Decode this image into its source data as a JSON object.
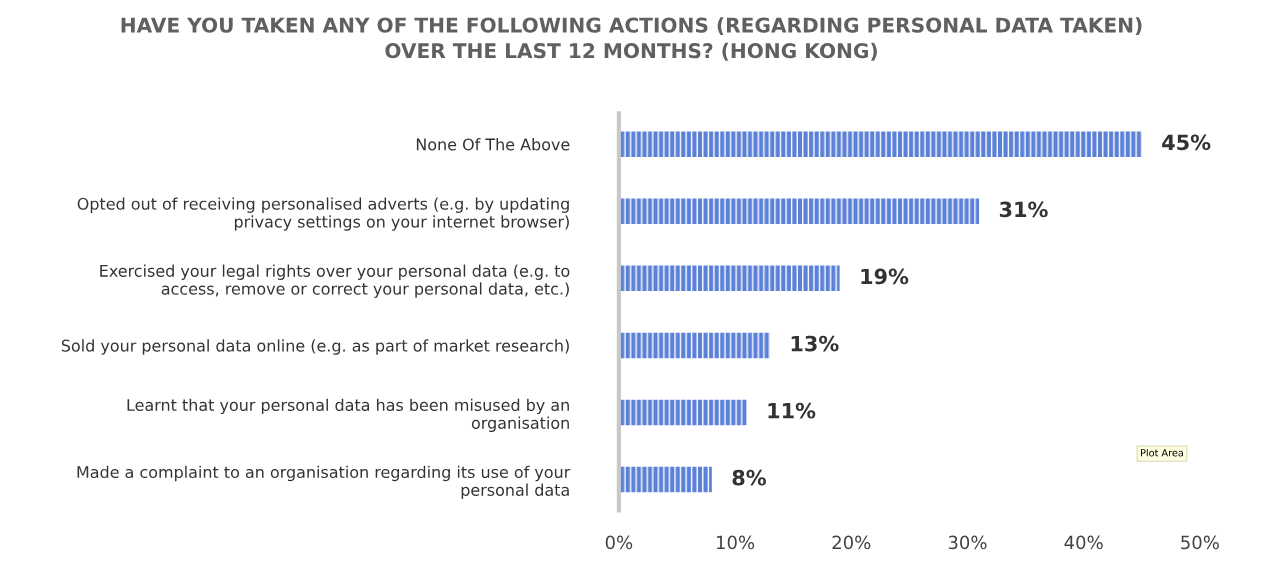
{
  "chart_data": {
    "type": "bar",
    "orientation": "horizontal",
    "title": "HAVE YOU TAKEN ANY OF THE FOLLOWING ACTIONS (REGARDING PERSONAL DATA TAKEN)\nOVER THE LAST 12 MONTHS? (HONG KONG)",
    "categories": [
      "None Of The Above",
      "Opted out of receiving personalised adverts (e.g. by updating\nprivacy settings on your internet browser)",
      "Exercised your legal rights over your personal data (e.g. to\naccess, remove or correct your personal data, etc.)",
      "Sold your personal data online (e.g. as part of market research)",
      "Learnt that your personal data has been misused by an\norganisation",
      "Made a complaint to an organisation regarding its use of your\npersonal data"
    ],
    "values": [
      45,
      31,
      19,
      13,
      11,
      8
    ],
    "value_labels": [
      "45%",
      "31%",
      "19%",
      "13%",
      "11%",
      "8%"
    ],
    "color": "#5b80d8",
    "xlim": [
      0,
      50
    ],
    "xticks": [
      {
        "value": 0,
        "label": "0%"
      },
      {
        "value": 10,
        "label": "10%"
      },
      {
        "value": 20,
        "label": "20%"
      },
      {
        "value": 30,
        "label": "30%"
      },
      {
        "value": 40,
        "label": "40%"
      },
      {
        "value": 50,
        "label": "50%"
      }
    ],
    "grid": false,
    "legend": false,
    "annotations": [
      "Plot Area"
    ]
  }
}
